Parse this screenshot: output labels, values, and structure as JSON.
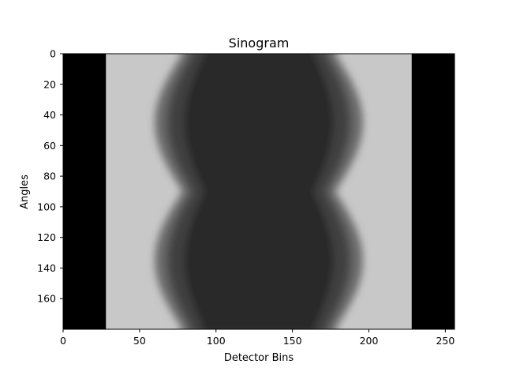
{
  "chart_data": {
    "type": "heatmap",
    "title": "Sinogram",
    "xlabel": "Detector Bins",
    "ylabel": "Angles",
    "xlim": [
      0,
      256
    ],
    "ylim": [
      180,
      0
    ],
    "x_ticks": [
      0,
      50,
      100,
      150,
      200,
      250
    ],
    "y_ticks": [
      0,
      20,
      40,
      60,
      80,
      100,
      120,
      140,
      160
    ],
    "colormap": "gray",
    "grid": false,
    "regions": {
      "background_black": [
        [
          0,
          28
        ],
        [
          228,
          256
        ]
      ],
      "bright_band": [
        28,
        228
      ],
      "object_center_bin": 128,
      "object_min_extent_bin": [
        78,
        178
      ],
      "object_max_extent_bin": [
        60,
        196
      ],
      "period_angles": 90
    }
  },
  "colors": {
    "background": "#000000",
    "bright": "#c4c4c4",
    "object_dark": "#181818",
    "axis": "#000000"
  }
}
